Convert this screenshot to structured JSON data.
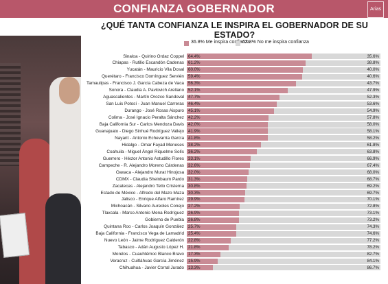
{
  "header": {
    "title": "CONFIANZA GOBERNADOR",
    "logo_text": "Arias",
    "subtitle": "¿QUÉ TANTA CONFIANZA LE INSPIRA EL GOBERNADOR DE SU ESTADO?"
  },
  "colors": {
    "banner": "#b8576a",
    "series1": "#c98b95",
    "series2": "#d8d8d8"
  },
  "chart_data": {
    "type": "bar",
    "orientation": "horizontal-stacked",
    "legend_position": "top",
    "xlim": [
      0,
      100
    ],
    "series": [
      {
        "name": "36.8% Me inspira confianza",
        "color": "#c98b95",
        "values": [
          64.4,
          61.2,
          60.0,
          59.4,
          56.3,
          52.1,
          47.7,
          46.4,
          45.1,
          42.2,
          42.0,
          41.9,
          41.8,
          38.2,
          36.2,
          33.1,
          32.6,
          32.0,
          31.3,
          30.8,
          30.3,
          29.9,
          27.2,
          26.9,
          26.8,
          25.7,
          25.4,
          22.8,
          21.8,
          17.3,
          15.9,
          13.3
        ]
      },
      {
        "name": "62.3% No me inspira confianza",
        "color": "#d8d8d8",
        "values": [
          35.6,
          38.8,
          40.0,
          40.6,
          43.7,
          47.9,
          52.3,
          53.6,
          54.9,
          57.8,
          58.0,
          58.1,
          58.2,
          61.8,
          63.8,
          66.9,
          67.4,
          68.0,
          68.7,
          69.2,
          69.7,
          70.1,
          72.8,
          73.1,
          73.2,
          74.3,
          74.6,
          77.2,
          78.2,
          82.7,
          84.1,
          86.7
        ]
      }
    ],
    "categories": [
      "Sinaloa - Quirino Ordaz Coppel",
      "Chiapas - Rutilio Escandón Cadenas",
      "Yucatán - Mauricio Vila Dosal",
      "Querétaro - Francisco Domínguez Servién",
      "Tamaulipas - Francisco J. García Cabeza de Vaca",
      "Sonora - Claudia A. Pavlovich Arellano",
      "Aguascalientes - Martín Orozco Sandoval",
      "San Luis Potosí - Juan Manuel Carreras",
      "Durango - José Rosas Aispuro",
      "Colima - José Ignacio Peralta Sánchez",
      "Baja California Sur - Carlos Mendoza Davis",
      "Guanajuato - Diego Sinhué Rodríguez Vallejo",
      "Nayarit - Antonio Echevarría García",
      "Hidalgo - Omar Fayad Meneses",
      "Coahuila - Miguel Ángel Riquelme Solís",
      "Guerrero - Héctor Antonio Astudillo Flores",
      "Campeche - R. Alejandro Moreno Cárdenas",
      "Oaxaca - Alejandro Murat Hinojosa",
      "CDMX - Claudia Sheinbaum Pardo",
      "Zacatecas - Alejandro Tello Cristerna",
      "Estado de México - Alfredo del Mazo Maza",
      "Jalisco - Enrique Alfaro Ramírez",
      "Michoacán - Silvano Aureoles Conejo",
      "Tlaxcala - Marco Antonio Mena Rodríguez",
      "Gobierno de Puebla",
      "Quintana Roo - Carlos Joaquín González",
      "Baja California - Francisco Vega de Lamadrid",
      "Nuevo León - Jaime Rodríguez Calderón",
      "Tabasco - Adán Augusto López H.",
      "Morelos - Cuauhtémoc Blanco Bravo",
      "Veracruz - Cuitláhuac García Jiménez",
      "Chihuahua - Javier Corral Jurado"
    ],
    "labels1": [
      "64.4%",
      "61.2%",
      "60.0%",
      "59.4%",
      "56.3%",
      "52.1%",
      "47.7%",
      "46.4%",
      "45.1%",
      "42.2%",
      "42.0%",
      "41.9%",
      "41.8%",
      "38.2%",
      "36.2%",
      "33.1%",
      "32.6%",
      "32.0%",
      "31.3%",
      "30.8%",
      "30.3%",
      "29.9%",
      "27.2%",
      "26.9%",
      "26.8%",
      "25.7%",
      "25.4%",
      "22.8%",
      "21.8%",
      "17.3%",
      "15.9%",
      "13.3%"
    ],
    "labels2": [
      "35.6%",
      "38.8%",
      "40.0%",
      "40.6%",
      "43.7%",
      "47.9%",
      "52.3%",
      "53.6%",
      "54.9%",
      "57.8%",
      "58.0%",
      "58.1%",
      "58.2%",
      "61.8%",
      "63.8%",
      "66.9%",
      "67.4%",
      "68.0%",
      "68.7%",
      "69.2%",
      "69.7%",
      "70.1%",
      "72.8%",
      "73.1%",
      "73.2%",
      "74.3%",
      "74.6%",
      "77.2%",
      "78.2%",
      "82.7%",
      "84.1%",
      "86.7%"
    ]
  }
}
